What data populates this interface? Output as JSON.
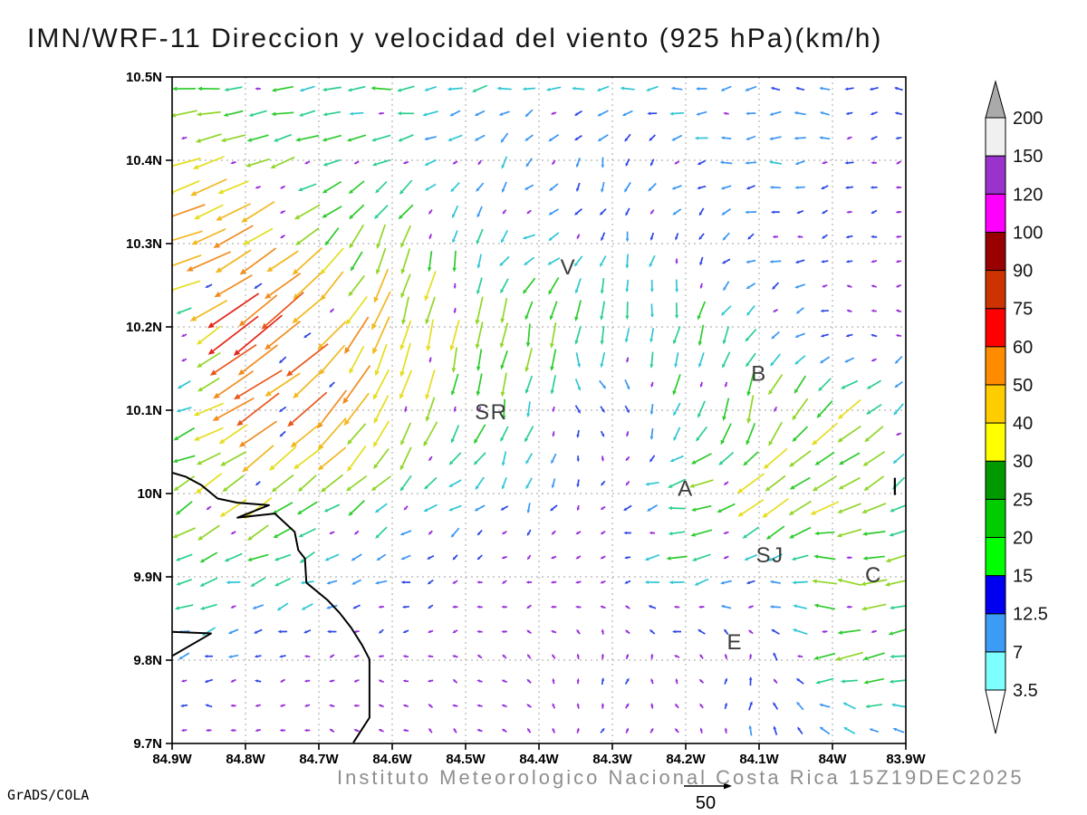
{
  "title": "IMN/WRF-11 Direccion y velocidad del viento (925 hPa)(km/h)",
  "watermark": "GrADS/COLA",
  "footer": {
    "text": "Instituto Meteorologico Nacional Costa Rica 15Z19DEC2025",
    "ref_label": "50"
  },
  "chart_data": {
    "type": "vector_field",
    "title": "IMN/WRF-11 Direccion y velocidad del viento (925 hPa)(km/h)",
    "units": "km/h",
    "level": "925 hPa",
    "valid_time": "15Z19DEC2025",
    "lon_range": [
      -84.9,
      -83.9
    ],
    "lat_range": [
      9.7,
      10.5
    ],
    "x_ticks": [
      "84.9W",
      "84.8W",
      "84.7W",
      "84.6W",
      "84.5W",
      "84.4W",
      "84.3W",
      "84.2W",
      "84.1W",
      "84W",
      "83.9W"
    ],
    "y_ticks": [
      "10.5N",
      "10.4N",
      "10.3N",
      "10.2N",
      "10.1N",
      "10N",
      "9.9N",
      "9.8N",
      "9.7N"
    ],
    "grid": "dotted, every 0.1 degree",
    "vector_reference": {
      "value": 50,
      "label": "50"
    },
    "speed_color_scale": [
      {
        "max": 7,
        "color": "#9326d9",
        "name": "purple"
      },
      {
        "max": 11,
        "color": "#2b45e6",
        "name": "blue"
      },
      {
        "max": 14,
        "color": "#3a96f2",
        "name": "dodger-blue"
      },
      {
        "max": 18,
        "color": "#2fc6d4",
        "name": "turquoise"
      },
      {
        "max": 22,
        "color": "#2bcf8f",
        "name": "teal-green"
      },
      {
        "max": 27,
        "color": "#2ecb2e",
        "name": "green"
      },
      {
        "max": 33,
        "color": "#90d628",
        "name": "yellow-green"
      },
      {
        "max": 40,
        "color": "#e5de1f",
        "name": "yellow"
      },
      {
        "max": 48,
        "color": "#f2b81f",
        "name": "gold"
      },
      {
        "max": 57,
        "color": "#f28c1e",
        "name": "orange"
      },
      {
        "max": 67,
        "color": "#ea5517",
        "name": "orange-red"
      },
      {
        "max": 78,
        "color": "#e52317",
        "name": "red"
      },
      {
        "max": 9999,
        "color": "#e6188f",
        "name": "magenta"
      }
    ],
    "colorbar": {
      "levels": [
        "3.5",
        "7",
        "12.5",
        "15",
        "20",
        "25",
        "30",
        "40",
        "50",
        "60",
        "75",
        "90",
        "100",
        "120",
        "150",
        "200"
      ],
      "colors": [
        "#7dffff",
        "#3c9cf5",
        "#0000f0",
        "#00ff00",
        "#00cc00",
        "#009900",
        "#ffff00",
        "#ffcc00",
        "#ff8c00",
        "#ff0000",
        "#cc3300",
        "#990000",
        "#ff00ff",
        "#9933cc",
        "#f0f0f0"
      ],
      "under_color": "#ffffff",
      "over_color": "#aaaaaa"
    },
    "wind_grid": {
      "units": "km/h",
      "lons": [
        -84.9,
        -84.8,
        -84.7,
        -84.6,
        -84.5,
        -84.4,
        -84.3,
        -84.2,
        -84.1,
        -84.0,
        -83.9
      ],
      "lats": [
        10.5,
        10.4,
        10.3,
        10.2,
        10.1,
        10.0,
        9.9,
        9.8,
        9.7
      ],
      "u": [
        [
          -24,
          -22,
          -20,
          -18,
          -17,
          -16,
          -15,
          -14,
          -13,
          -11,
          -8
        ],
        [
          -32,
          -28,
          -22,
          -16,
          -11,
          -5,
          -4,
          -11,
          -14,
          -9,
          -5
        ],
        [
          -48,
          -36,
          -22,
          -9,
          -4,
          -16,
          -4,
          -3,
          -10,
          -8,
          -4
        ],
        [
          -4,
          -58,
          -34,
          -12,
          -4,
          -4,
          -2,
          -4,
          -13,
          -7,
          -4
        ],
        [
          -16,
          -40,
          -32,
          -13,
          -6,
          -4,
          7,
          -6,
          -6,
          -24,
          -13
        ],
        [
          -19,
          -30,
          -20,
          -15,
          -12,
          -4,
          -4,
          -24,
          -28,
          -26,
          -16
        ],
        [
          -20,
          -18,
          -15,
          -10,
          -5,
          -4,
          -4,
          -22,
          -9,
          -27,
          -24
        ],
        [
          -13,
          -8,
          -5,
          -4,
          -3,
          -2,
          1,
          -3,
          2,
          -28,
          -21
        ],
        [
          -4,
          -3,
          -3,
          -3,
          -2,
          -3,
          4,
          -2,
          1,
          -5,
          -9
        ]
      ],
      "v": [
        [
          -3,
          -2,
          -2,
          -2,
          -2,
          -2,
          -2,
          -1,
          -1,
          -1,
          -1
        ],
        [
          -12,
          -9,
          -6,
          -4,
          -8,
          -11,
          -11,
          -4,
          -1,
          -1,
          -1
        ],
        [
          -14,
          -20,
          -22,
          -24,
          -16,
          -6,
          -11,
          -10,
          -4,
          -2,
          -1
        ],
        [
          -3,
          -40,
          -30,
          -40,
          -28,
          -28,
          -18,
          -22,
          -10,
          2,
          0
        ],
        [
          -1,
          -26,
          -32,
          -38,
          -26,
          -17,
          -4,
          -20,
          -26,
          -20,
          -10
        ],
        [
          -11,
          -22,
          -16,
          -11,
          -9,
          -10,
          -4,
          -4,
          -18,
          -16,
          -9
        ],
        [
          -6,
          -5,
          -5,
          -3,
          -2,
          -2,
          -2,
          -3,
          -6,
          9,
          -9
        ],
        [
          -3,
          -2,
          -1,
          -1,
          1,
          2,
          8,
          3,
          12,
          -8,
          -5
        ],
        [
          1,
          1,
          2,
          2,
          2,
          2,
          7,
          4,
          10,
          13,
          7
        ]
      ]
    },
    "cities": [
      {
        "label": "V",
        "lon": -84.36,
        "lat": 10.272
      },
      {
        "label": "B",
        "lon": -84.1,
        "lat": 10.144
      },
      {
        "label": "SR",
        "lon": -84.465,
        "lat": 10.098
      },
      {
        "label": "A",
        "lon": -84.2,
        "lat": 10.006
      },
      {
        "label": "SJ",
        "lon": -84.085,
        "lat": 9.926
      },
      {
        "label": "C",
        "lon": -83.944,
        "lat": 9.902
      },
      {
        "label": "E",
        "lon": -84.133,
        "lat": 9.822
      }
    ],
    "station_mark": {
      "lon": -83.915,
      "lat": 10.008
    },
    "coastline": [
      [
        -84.9,
        10.025
      ],
      [
        -84.881,
        10.02
      ],
      [
        -84.86,
        10.01
      ],
      [
        -84.838,
        9.994
      ],
      [
        -84.811,
        9.989
      ],
      [
        -84.768,
        9.986
      ],
      [
        -84.811,
        9.971
      ],
      [
        -84.76,
        9.976
      ],
      [
        -84.733,
        9.954
      ],
      [
        -84.728,
        9.932
      ],
      [
        -84.719,
        9.922
      ],
      [
        -84.717,
        9.893
      ],
      [
        -84.688,
        9.872
      ],
      [
        -84.672,
        9.857
      ],
      [
        -84.656,
        9.839
      ],
      [
        -84.641,
        9.818
      ],
      [
        -84.631,
        9.801
      ],
      [
        -84.631,
        9.731
      ],
      [
        -84.653,
        9.701
      ]
    ],
    "coastline2": [
      [
        -84.9,
        9.834
      ],
      [
        -84.847,
        9.832
      ],
      [
        -84.9,
        9.805
      ]
    ]
  }
}
